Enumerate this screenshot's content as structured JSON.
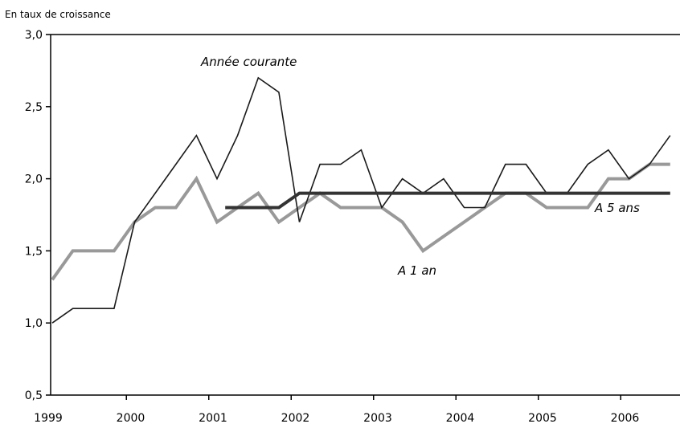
{
  "chart_data": {
    "type": "line",
    "unit_label": "En taux de croissance",
    "ylim": [
      0.5,
      3.0
    ],
    "yticks": [
      "3,0",
      "2,5",
      "2,0",
      "1,5",
      "1,0",
      "0,5"
    ],
    "xticks": [
      "1999",
      "2000",
      "2001",
      "2002",
      "2003",
      "2004",
      "2005",
      "2006"
    ],
    "grid": false,
    "series": [
      {
        "name": "Année courante",
        "color": "#1a1a1a",
        "points": [
          [
            1999.0,
            1.0
          ],
          [
            1999.25,
            1.1
          ],
          [
            1999.5,
            1.1
          ],
          [
            1999.75,
            1.1
          ],
          [
            2000.0,
            1.7
          ],
          [
            2000.25,
            1.9
          ],
          [
            2000.5,
            2.1
          ],
          [
            2000.75,
            2.3
          ],
          [
            2001.0,
            2.0
          ],
          [
            2001.25,
            2.3
          ],
          [
            2001.5,
            2.7
          ],
          [
            2001.75,
            2.6
          ],
          [
            2002.0,
            1.7
          ],
          [
            2002.25,
            2.1
          ],
          [
            2002.5,
            2.1
          ],
          [
            2002.75,
            2.2
          ],
          [
            2003.0,
            1.8
          ],
          [
            2003.25,
            2.0
          ],
          [
            2003.5,
            1.9
          ],
          [
            2003.75,
            2.0
          ],
          [
            2004.0,
            1.8
          ],
          [
            2004.25,
            1.8
          ],
          [
            2004.5,
            2.1
          ],
          [
            2004.75,
            2.1
          ],
          [
            2005.0,
            1.9
          ],
          [
            2005.25,
            1.9
          ],
          [
            2005.5,
            2.1
          ],
          [
            2005.75,
            2.2
          ],
          [
            2006.0,
            2.0
          ],
          [
            2006.25,
            2.1
          ],
          [
            2006.5,
            2.3
          ]
        ]
      },
      {
        "name": "A 1 an",
        "color": "#999999",
        "points": [
          [
            1999.0,
            1.3
          ],
          [
            1999.25,
            1.5
          ],
          [
            1999.5,
            1.5
          ],
          [
            1999.75,
            1.5
          ],
          [
            2000.0,
            1.7
          ],
          [
            2000.25,
            1.8
          ],
          [
            2000.5,
            1.8
          ],
          [
            2000.75,
            2.0
          ],
          [
            2001.0,
            1.7
          ],
          [
            2001.25,
            1.8
          ],
          [
            2001.5,
            1.9
          ],
          [
            2001.75,
            1.7
          ],
          [
            2002.0,
            1.8
          ],
          [
            2002.25,
            1.9
          ],
          [
            2002.5,
            1.8
          ],
          [
            2002.75,
            1.8
          ],
          [
            2003.0,
            1.8
          ],
          [
            2003.25,
            1.7
          ],
          [
            2003.5,
            1.5
          ],
          [
            2003.75,
            1.6
          ],
          [
            2004.0,
            1.7
          ],
          [
            2004.25,
            1.8
          ],
          [
            2004.5,
            1.9
          ],
          [
            2004.75,
            1.9
          ],
          [
            2005.0,
            1.8
          ],
          [
            2005.25,
            1.8
          ],
          [
            2005.5,
            1.8
          ],
          [
            2005.75,
            2.0
          ],
          [
            2006.0,
            2.0
          ],
          [
            2006.25,
            2.1
          ],
          [
            2006.5,
            2.1
          ]
        ]
      },
      {
        "name": "A 5 ans",
        "color": "#333333",
        "points": [
          [
            2001.1,
            1.8
          ],
          [
            2001.75,
            1.8
          ],
          [
            2002.0,
            1.9
          ],
          [
            2006.5,
            1.9
          ]
        ]
      }
    ]
  }
}
